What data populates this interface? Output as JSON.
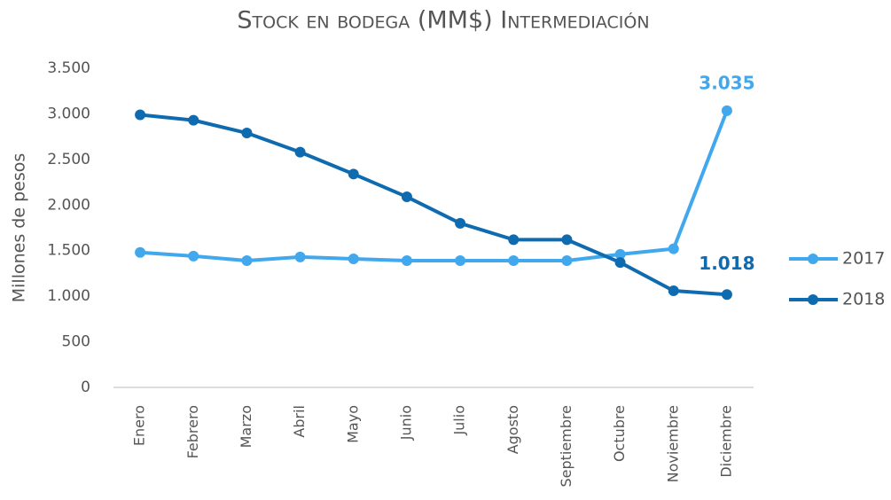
{
  "chart_data": {
    "type": "line",
    "title": "Stock en bodega (MM$) Intermediación",
    "y_label": "Millones de pesos",
    "categories": [
      "Enero",
      "Febrero",
      "Marzo",
      "Abril",
      "Mayo",
      "Junio",
      "Julio",
      "Agosto",
      "Septiembre",
      "Octubre",
      "Noviembre",
      "Diciembre"
    ],
    "series": [
      {
        "name": "2017",
        "color": "#41a8ee",
        "values": [
          1480,
          1440,
          1390,
          1430,
          1410,
          1390,
          1390,
          1390,
          1390,
          1460,
          1520,
          3035
        ],
        "value_labels": [
          null,
          null,
          null,
          null,
          null,
          null,
          null,
          null,
          null,
          null,
          null,
          "3.035"
        ]
      },
      {
        "name": "2018",
        "color": "#0f6bb0",
        "values": [
          2990,
          2930,
          2790,
          2580,
          2340,
          2090,
          1800,
          1620,
          1620,
          1370,
          1060,
          1018
        ],
        "value_labels": [
          null,
          null,
          null,
          null,
          null,
          null,
          null,
          null,
          null,
          null,
          null,
          "1.018"
        ]
      }
    ],
    "ylim": [
      0,
      3500
    ],
    "yticks": [
      0,
      500,
      {
        "value": 1000,
        "label": "1.000"
      },
      {
        "value": 1500,
        "label": "1.500"
      },
      {
        "value": 2000,
        "label": "2.000"
      },
      {
        "value": 2500,
        "label": "2.500"
      },
      {
        "value": 3000,
        "label": "3.000"
      },
      {
        "value": 3500,
        "label": "3.500"
      }
    ],
    "grid": false,
    "legend": "right"
  }
}
